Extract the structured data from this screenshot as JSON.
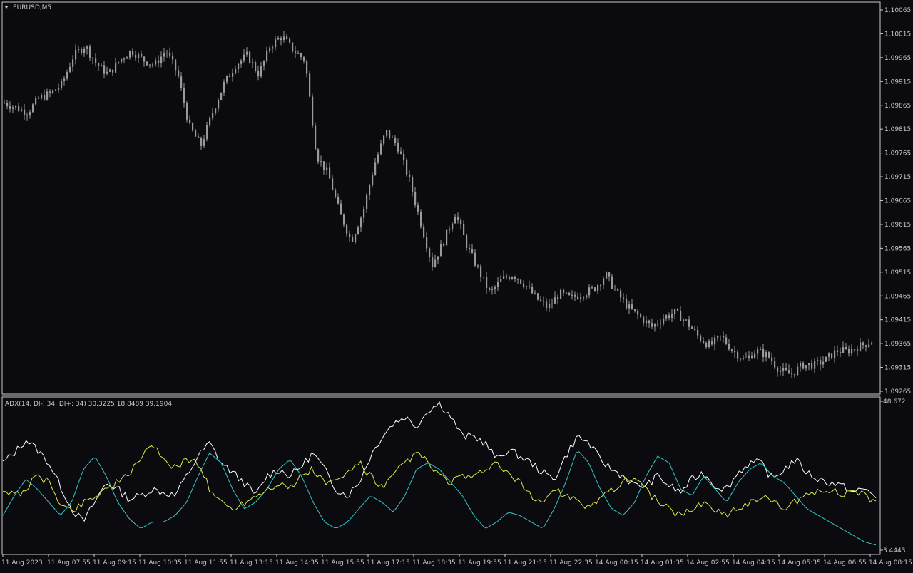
{
  "chart_window": {
    "symbol_label": "EURUSD,M5",
    "indicator_label": "ADX(14, DI-: 34, DI+: 34) 30.3225 18.8489 39.1904"
  },
  "colors": {
    "background": "#0b0b0f",
    "frame": "#c8c8c8",
    "candle": "#9a9a9a",
    "adx": "#ffffff",
    "di_minus": "#2fc9c9",
    "di_plus": "#d8ea4a"
  },
  "chart_data": [
    {
      "type": "candlestick",
      "title": "EURUSD,M5",
      "y_ticks": [
        "1.10065",
        "1.10015",
        "1.09965",
        "1.09915",
        "1.09865",
        "1.09815",
        "1.09765",
        "1.09715",
        "1.09665",
        "1.09615",
        "1.09565",
        "1.09515",
        "1.09465",
        "1.09415",
        "1.09365",
        "1.09315",
        "1.09265"
      ],
      "ylim": [
        1.09265,
        1.10065
      ],
      "x_ticks": [
        "11 Aug 2023",
        "11 Aug 07:55",
        "11 Aug 09:15",
        "11 Aug 10:35",
        "11 Aug 11:55",
        "11 Aug 13:15",
        "11 Aug 14:35",
        "11 Aug 15:55",
        "11 Aug 17:15",
        "11 Aug 18:35",
        "11 Aug 19:55",
        "11 Aug 21:15",
        "11 Aug 22:35",
        "14 Aug 00:15",
        "14 Aug 01:35",
        "14 Aug 02:55",
        "14 Aug 04:15",
        "14 Aug 05:35",
        "14 Aug 06:55",
        "14 Aug 08:15"
      ],
      "candles_per_tick": 16,
      "close_path": [
        1.0987,
        1.0986,
        1.0985,
        1.0988,
        1.0989,
        1.0991,
        1.0997,
        1.0999,
        1.0995,
        1.0993,
        1.0996,
        1.0998,
        1.0996,
        1.0995,
        1.0998,
        1.0993,
        1.0982,
        1.0978,
        1.0985,
        1.0991,
        1.0995,
        1.0997,
        1.0993,
        1.0999,
        1.1001,
        1.0998,
        1.0996,
        1.0976,
        1.0972,
        1.0964,
        1.0958,
        1.0964,
        1.0974,
        1.0981,
        1.0978,
        1.0971,
        1.0962,
        1.0953,
        1.0958,
        1.0964,
        1.0957,
        1.0952,
        1.0947,
        1.095,
        1.0951,
        1.0949,
        1.0946,
        1.0944,
        1.0947,
        1.0946,
        1.0947,
        1.0948,
        1.0951,
        1.0947,
        1.0944,
        1.0942,
        1.094,
        1.0942,
        1.0943,
        1.0941,
        1.0938,
        1.0936,
        1.0938,
        1.0935,
        1.0933,
        1.0935,
        1.0934,
        1.0931,
        1.093,
        1.0932,
        1.0932,
        1.0933,
        1.0935,
        1.0935,
        1.0936,
        1.0937
      ]
    },
    {
      "type": "line",
      "title": "ADX(14, DI-: 34, DI+: 34) 30.3225 18.8489 39.1904",
      "y_ticks": [
        "48.672",
        "3.4443"
      ],
      "ylim": [
        3.4443,
        48.672
      ],
      "x_ticks": [
        "11 Aug 2023",
        "11 Aug 07:55",
        "11 Aug 09:15",
        "11 Aug 10:35",
        "11 Aug 11:55",
        "11 Aug 13:15",
        "11 Aug 14:35",
        "11 Aug 15:55",
        "11 Aug 17:15",
        "11 Aug 18:35",
        "11 Aug 19:55",
        "11 Aug 21:15",
        "11 Aug 22:35",
        "14 Aug 00:15",
        "14 Aug 01:35",
        "14 Aug 02:55",
        "14 Aug 04:15",
        "14 Aug 05:35",
        "14 Aug 06:55",
        "14 Aug 08:15"
      ],
      "series": [
        {
          "name": "ADX",
          "color": "#ffffff",
          "values": [
            30,
            33,
            37,
            34,
            30,
            23,
            16,
            12,
            18,
            24,
            22,
            19,
            20,
            22,
            21,
            20,
            26,
            32,
            36,
            30,
            27,
            24,
            20,
            26,
            28,
            26,
            29,
            33,
            28,
            22,
            20,
            24,
            32,
            38,
            42,
            44,
            41,
            46,
            48,
            44,
            38,
            38,
            36,
            31,
            34,
            32,
            30,
            27,
            25,
            32,
            38,
            36,
            31,
            28,
            26,
            23,
            23,
            26,
            23,
            21,
            25,
            27,
            23,
            22,
            27,
            30,
            30,
            25,
            28,
            31,
            27,
            25,
            24,
            23,
            21,
            22,
            20
          ]
        },
        {
          "name": "DI-",
          "color": "#2fc9c9",
          "values": [
            14,
            20,
            25,
            22,
            18,
            14,
            18,
            28,
            32,
            26,
            18,
            13,
            10,
            12,
            12,
            14,
            18,
            26,
            33,
            30,
            22,
            16,
            18,
            22,
            28,
            31,
            26,
            18,
            12,
            10,
            12,
            16,
            20,
            18,
            15,
            20,
            28,
            30,
            28,
            24,
            20,
            14,
            10,
            12,
            15,
            14,
            12,
            10,
            16,
            24,
            34,
            30,
            22,
            16,
            14,
            18,
            26,
            32,
            30,
            22,
            20,
            26,
            22,
            18,
            24,
            28,
            30,
            26,
            24,
            20,
            16,
            14,
            12,
            10,
            8,
            6,
            5
          ]
        },
        {
          "name": "DI+",
          "color": "#d8ea4a",
          "values": [
            22,
            20,
            22,
            26,
            24,
            18,
            15,
            18,
            20,
            22,
            24,
            26,
            32,
            36,
            30,
            29,
            31,
            30,
            22,
            18,
            16,
            18,
            20,
            22,
            24,
            22,
            26,
            28,
            24,
            24,
            27,
            30,
            26,
            22,
            26,
            30,
            33,
            30,
            26,
            24,
            26,
            25,
            28,
            30,
            26,
            24,
            20,
            18,
            22,
            20,
            18,
            16,
            20,
            22,
            24,
            26,
            22,
            18,
            16,
            14,
            16,
            18,
            16,
            14,
            16,
            18,
            20,
            18,
            16,
            18,
            20,
            22,
            22,
            20,
            22,
            20,
            18
          ]
        }
      ]
    }
  ]
}
